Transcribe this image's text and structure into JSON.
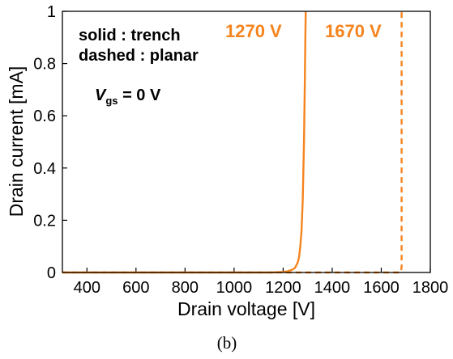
{
  "chart_data": {
    "type": "line",
    "xlabel": "Drain voltage [V]",
    "ylabel": "Drain current [mA]",
    "xlim": [
      300,
      1800
    ],
    "ylim": [
      0,
      1
    ],
    "xticks": [
      400,
      600,
      800,
      1000,
      1200,
      1400,
      1600,
      1800
    ],
    "xtick_labels": [
      "400",
      "600",
      "800",
      "1000",
      "1200",
      "1400",
      "1600",
      "1800"
    ],
    "yticks": [
      0,
      0.2,
      0.4,
      0.6,
      0.8,
      1
    ],
    "ytick_labels": [
      "0",
      "0.2",
      "0.4",
      "0.6",
      "0.8",
      "1"
    ],
    "grid": false,
    "color": "#f5841f",
    "series": [
      {
        "style": "solid",
        "x": [
          300,
          1000,
          1150,
          1200,
          1220,
          1240,
          1250,
          1260,
          1265,
          1270,
          1275,
          1280,
          1285,
          1288,
          1290,
          1292
        ],
        "y": [
          0,
          0,
          0.0,
          0.002,
          0.005,
          0.012,
          0.02,
          0.04,
          0.06,
          0.1,
          0.16,
          0.28,
          0.5,
          0.7,
          0.86,
          1.0
        ]
      },
      {
        "style": "dashed",
        "x": [
          300,
          1670,
          1680,
          1683,
          1683
        ],
        "y": [
          0,
          0,
          0.002,
          0.02,
          1.0
        ]
      }
    ],
    "annotations": {
      "legend_line1": "solid : trench",
      "legend_line2": "dashed : planar",
      "vgs_symbol": "V",
      "vgs_subscript": "gs",
      "vgs_value": " = 0 V",
      "breakdown_trench": "1270 V",
      "breakdown_planar": "1670 V"
    }
  },
  "caption": "(b)"
}
